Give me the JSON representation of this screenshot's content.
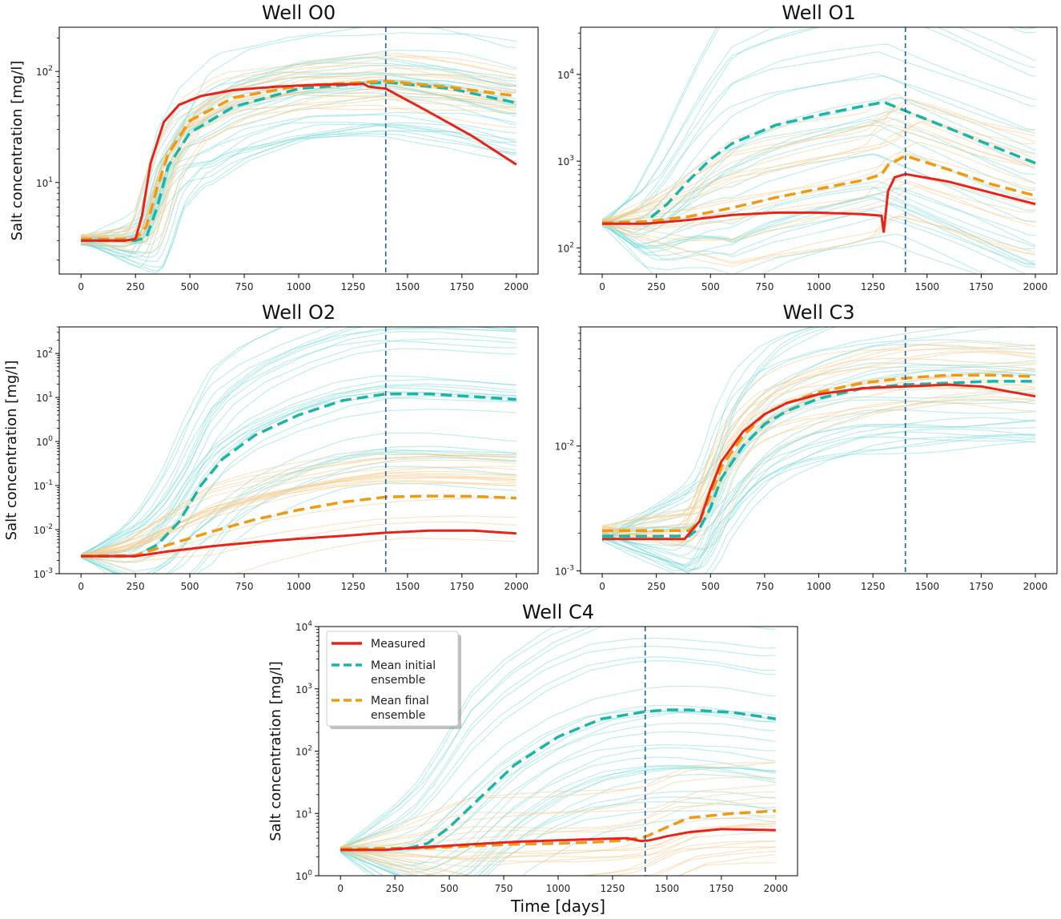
{
  "figure": {
    "y_axis_label": "Salt concentration [mg/l]",
    "x_axis_label": "Time [days]",
    "colors": {
      "measured": "#e8231a",
      "initial": "#1bb5a8",
      "final": "#f09a12",
      "initial_ensemble": "#6fd7d4",
      "final_ensemble": "#f7c98a",
      "cutoff": "#1f5fa0"
    }
  },
  "legend": {
    "items": [
      {
        "key": "measured",
        "label_lines": [
          "Measured"
        ]
      },
      {
        "key": "initial",
        "label_lines": [
          "Mean initial",
          "ensemble"
        ]
      },
      {
        "key": "final",
        "label_lines": [
          "Mean final",
          "ensemble"
        ]
      }
    ]
  },
  "chart_data": [
    {
      "type": "line",
      "title": "Well O0",
      "yscale": "log",
      "xlim": [
        -100,
        2100
      ],
      "ylim": [
        1.5,
        250
      ],
      "cutoff_x": 1400,
      "xticks": [
        0,
        250,
        500,
        750,
        1000,
        1250,
        1500,
        1750,
        2000
      ],
      "yticks": [
        {
          "v": 10,
          "label": "10^1"
        },
        {
          "v": 100,
          "label": "10^2"
        }
      ],
      "ylabel": "Salt concentration [mg/l]",
      "ensemble_initial": {
        "n": 30,
        "spread": 0.55
      },
      "ensemble_final": {
        "n": 20,
        "spread": 0.25
      },
      "series": [
        {
          "name": "Measured",
          "x": [
            0,
            200,
            250,
            280,
            320,
            380,
            450,
            550,
            700,
            900,
            1100,
            1300,
            1320,
            1400,
            1600,
            1800,
            2000
          ],
          "y": [
            3,
            3,
            3.1,
            5,
            15,
            35,
            50,
            60,
            68,
            73,
            76,
            77,
            73,
            70,
            43,
            26,
            14.5
          ]
        },
        {
          "name": "Mean initial ensemble",
          "x": [
            0,
            250,
            300,
            350,
            400,
            500,
            700,
            1000,
            1300,
            1400,
            1700,
            2000
          ],
          "y": [
            3,
            3,
            3.2,
            6,
            14,
            28,
            48,
            70,
            78,
            80,
            70,
            52
          ]
        },
        {
          "name": "Mean final ensemble",
          "x": [
            0,
            250,
            300,
            350,
            400,
            500,
            700,
            1000,
            1300,
            1400,
            1700,
            2000
          ],
          "y": [
            3.1,
            3.1,
            4,
            9,
            18,
            36,
            58,
            74,
            80,
            82,
            72,
            60
          ]
        }
      ]
    },
    {
      "type": "line",
      "title": "Well O1",
      "yscale": "log",
      "xlim": [
        -100,
        2100
      ],
      "ylim": [
        50,
        35000
      ],
      "cutoff_x": 1400,
      "xticks": [
        0,
        250,
        500,
        750,
        1000,
        1250,
        1500,
        1750,
        2000
      ],
      "yticks": [
        {
          "v": 100,
          "label": "10^2"
        },
        {
          "v": 1000,
          "label": "10^3"
        },
        {
          "v": 10000,
          "label": "10^4"
        }
      ],
      "ylabel": "",
      "ensemble_initial": {
        "n": 30,
        "spread": 1.6
      },
      "ensemble_final": {
        "n": 20,
        "spread": 0.8
      },
      "series": [
        {
          "name": "Measured",
          "x": [
            0,
            200,
            400,
            600,
            800,
            1000,
            1200,
            1290,
            1300,
            1320,
            1350,
            1400,
            1600,
            1800,
            2000
          ],
          "y": [
            190,
            190,
            210,
            240,
            255,
            255,
            245,
            235,
            150,
            450,
            650,
            710,
            580,
            430,
            320
          ]
        },
        {
          "name": "Mean initial ensemble",
          "x": [
            0,
            200,
            300,
            400,
            500,
            600,
            800,
            1000,
            1200,
            1300,
            1400,
            1600,
            1800,
            2000
          ],
          "y": [
            195,
            200,
            320,
            600,
            1050,
            1600,
            2600,
            3400,
            4300,
            4800,
            3800,
            2400,
            1500,
            950
          ]
        },
        {
          "name": "Mean final ensemble",
          "x": [
            0,
            200,
            400,
            600,
            800,
            1000,
            1200,
            1290,
            1320,
            1400,
            1600,
            1800,
            2000
          ],
          "y": [
            195,
            200,
            230,
            290,
            380,
            480,
            600,
            700,
            900,
            1150,
            800,
            540,
            400
          ]
        }
      ]
    },
    {
      "type": "line",
      "title": "Well O2",
      "yscale": "log",
      "xlim": [
        -100,
        2100
      ],
      "ylim": [
        0.001,
        400
      ],
      "cutoff_x": 1400,
      "xticks": [
        0,
        250,
        500,
        750,
        1000,
        1250,
        1500,
        1750,
        2000
      ],
      "yticks": [
        {
          "v": 0.001,
          "label": "10^-3"
        },
        {
          "v": 0.01,
          "label": "10^-2"
        },
        {
          "v": 0.1,
          "label": "10^-1"
        },
        {
          "v": 1,
          "label": "10^0"
        },
        {
          "v": 10,
          "label": "10^1"
        },
        {
          "v": 100,
          "label": "10^2"
        }
      ],
      "ylabel": "Salt concentration [mg/l]",
      "ensemble_initial": {
        "n": 30,
        "spread": 2.2
      },
      "ensemble_final": {
        "n": 20,
        "spread": 1.0
      },
      "series": [
        {
          "name": "Measured",
          "x": [
            0,
            250,
            400,
            600,
            800,
            1000,
            1200,
            1400,
            1600,
            1800,
            2000
          ],
          "y": [
            0.0025,
            0.0025,
            0.0032,
            0.0042,
            0.0052,
            0.0062,
            0.0072,
            0.0085,
            0.0095,
            0.0095,
            0.0082
          ]
        },
        {
          "name": "Mean initial ensemble",
          "x": [
            0,
            250,
            350,
            450,
            550,
            650,
            800,
            1000,
            1200,
            1400,
            1600,
            1800,
            2000
          ],
          "y": [
            0.0025,
            0.0025,
            0.0045,
            0.015,
            0.1,
            0.4,
            1.4,
            4,
            8.5,
            12,
            12,
            10.5,
            9
          ]
        },
        {
          "name": "Mean final ensemble",
          "x": [
            0,
            250,
            400,
            600,
            800,
            1000,
            1200,
            1400,
            1600,
            1800,
            2000
          ],
          "y": [
            0.0025,
            0.0026,
            0.0045,
            0.009,
            0.017,
            0.028,
            0.042,
            0.055,
            0.058,
            0.057,
            0.052
          ]
        }
      ]
    },
    {
      "type": "line",
      "title": "Well C3",
      "yscale": "log",
      "xlim": [
        -100,
        2100
      ],
      "ylim": [
        0.00095,
        0.09
      ],
      "cutoff_x": 1400,
      "xticks": [
        0,
        250,
        500,
        750,
        1000,
        1250,
        1500,
        1750,
        2000
      ],
      "yticks": [
        {
          "v": 0.001,
          "label": "10^-3"
        },
        {
          "v": 0.01,
          "label": "10^-2"
        }
      ],
      "ylabel": "",
      "ensemble_initial": {
        "n": 30,
        "spread": 0.6
      },
      "ensemble_final": {
        "n": 20,
        "spread": 0.25
      },
      "series": [
        {
          "name": "Measured",
          "x": [
            0,
            200,
            380,
            450,
            500,
            550,
            650,
            750,
            850,
            1000,
            1200,
            1400,
            1600,
            1750,
            2000
          ],
          "y": [
            0.0018,
            0.0018,
            0.0018,
            0.0025,
            0.0045,
            0.0075,
            0.013,
            0.018,
            0.022,
            0.026,
            0.029,
            0.03,
            0.031,
            0.03,
            0.025
          ]
        },
        {
          "name": "Mean initial ensemble",
          "x": [
            0,
            400,
            450,
            500,
            550,
            650,
            750,
            850,
            1000,
            1200,
            1400,
            1600,
            1800,
            2000
          ],
          "y": [
            0.0019,
            0.0019,
            0.0022,
            0.0032,
            0.0055,
            0.01,
            0.015,
            0.019,
            0.024,
            0.029,
            0.031,
            0.032,
            0.033,
            0.033
          ]
        },
        {
          "name": "Mean final ensemble",
          "x": [
            0,
            400,
            450,
            500,
            550,
            650,
            750,
            850,
            1000,
            1200,
            1400,
            1600,
            1800,
            2000
          ],
          "y": [
            0.0021,
            0.0021,
            0.0025,
            0.004,
            0.0068,
            0.012,
            0.018,
            0.022,
            0.027,
            0.032,
            0.035,
            0.037,
            0.037,
            0.036
          ]
        }
      ]
    },
    {
      "type": "line",
      "title": "Well C4",
      "yscale": "log",
      "xlim": [
        -100,
        2100
      ],
      "ylim": [
        1,
        10000
      ],
      "cutoff_x": 1400,
      "xticks": [
        0,
        250,
        500,
        750,
        1000,
        1250,
        1500,
        1750,
        2000
      ],
      "yticks": [
        {
          "v": 1,
          "label": "10^0"
        },
        {
          "v": 10,
          "label": "10^1"
        },
        {
          "v": 100,
          "label": "10^2"
        },
        {
          "v": 1000,
          "label": "10^3"
        },
        {
          "v": 10000,
          "label": "10^4"
        }
      ],
      "xlabel": "Time [days]",
      "ylabel": "Salt concentration [mg/l]",
      "ensemble_initial": {
        "n": 30,
        "spread": 1.8
      },
      "ensemble_final": {
        "n": 20,
        "spread": 0.8
      },
      "series": [
        {
          "name": "Measured",
          "x": [
            0,
            200,
            400,
            600,
            800,
            1000,
            1200,
            1320,
            1380,
            1420,
            1500,
            1600,
            1750,
            2000
          ],
          "y": [
            2.6,
            2.6,
            2.9,
            3.2,
            3.5,
            3.7,
            3.9,
            4,
            3.6,
            3.7,
            4.3,
            5.0,
            5.6,
            5.4
          ]
        },
        {
          "name": "Mean initial ensemble",
          "x": [
            0,
            300,
            400,
            500,
            600,
            700,
            800,
            1000,
            1200,
            1400,
            1500,
            1600,
            1800,
            2000
          ],
          "y": [
            2.6,
            2.7,
            3.3,
            6,
            13,
            28,
            60,
            170,
            330,
            430,
            460,
            460,
            420,
            330
          ]
        },
        {
          "name": "Mean final ensemble",
          "x": [
            0,
            400,
            600,
            800,
            1000,
            1200,
            1300,
            1400,
            1500,
            1600,
            1800,
            2000
          ],
          "y": [
            2.7,
            2.8,
            3,
            3.2,
            3.3,
            3.5,
            3.7,
            4.2,
            6,
            8.5,
            10,
            11
          ]
        }
      ]
    }
  ]
}
